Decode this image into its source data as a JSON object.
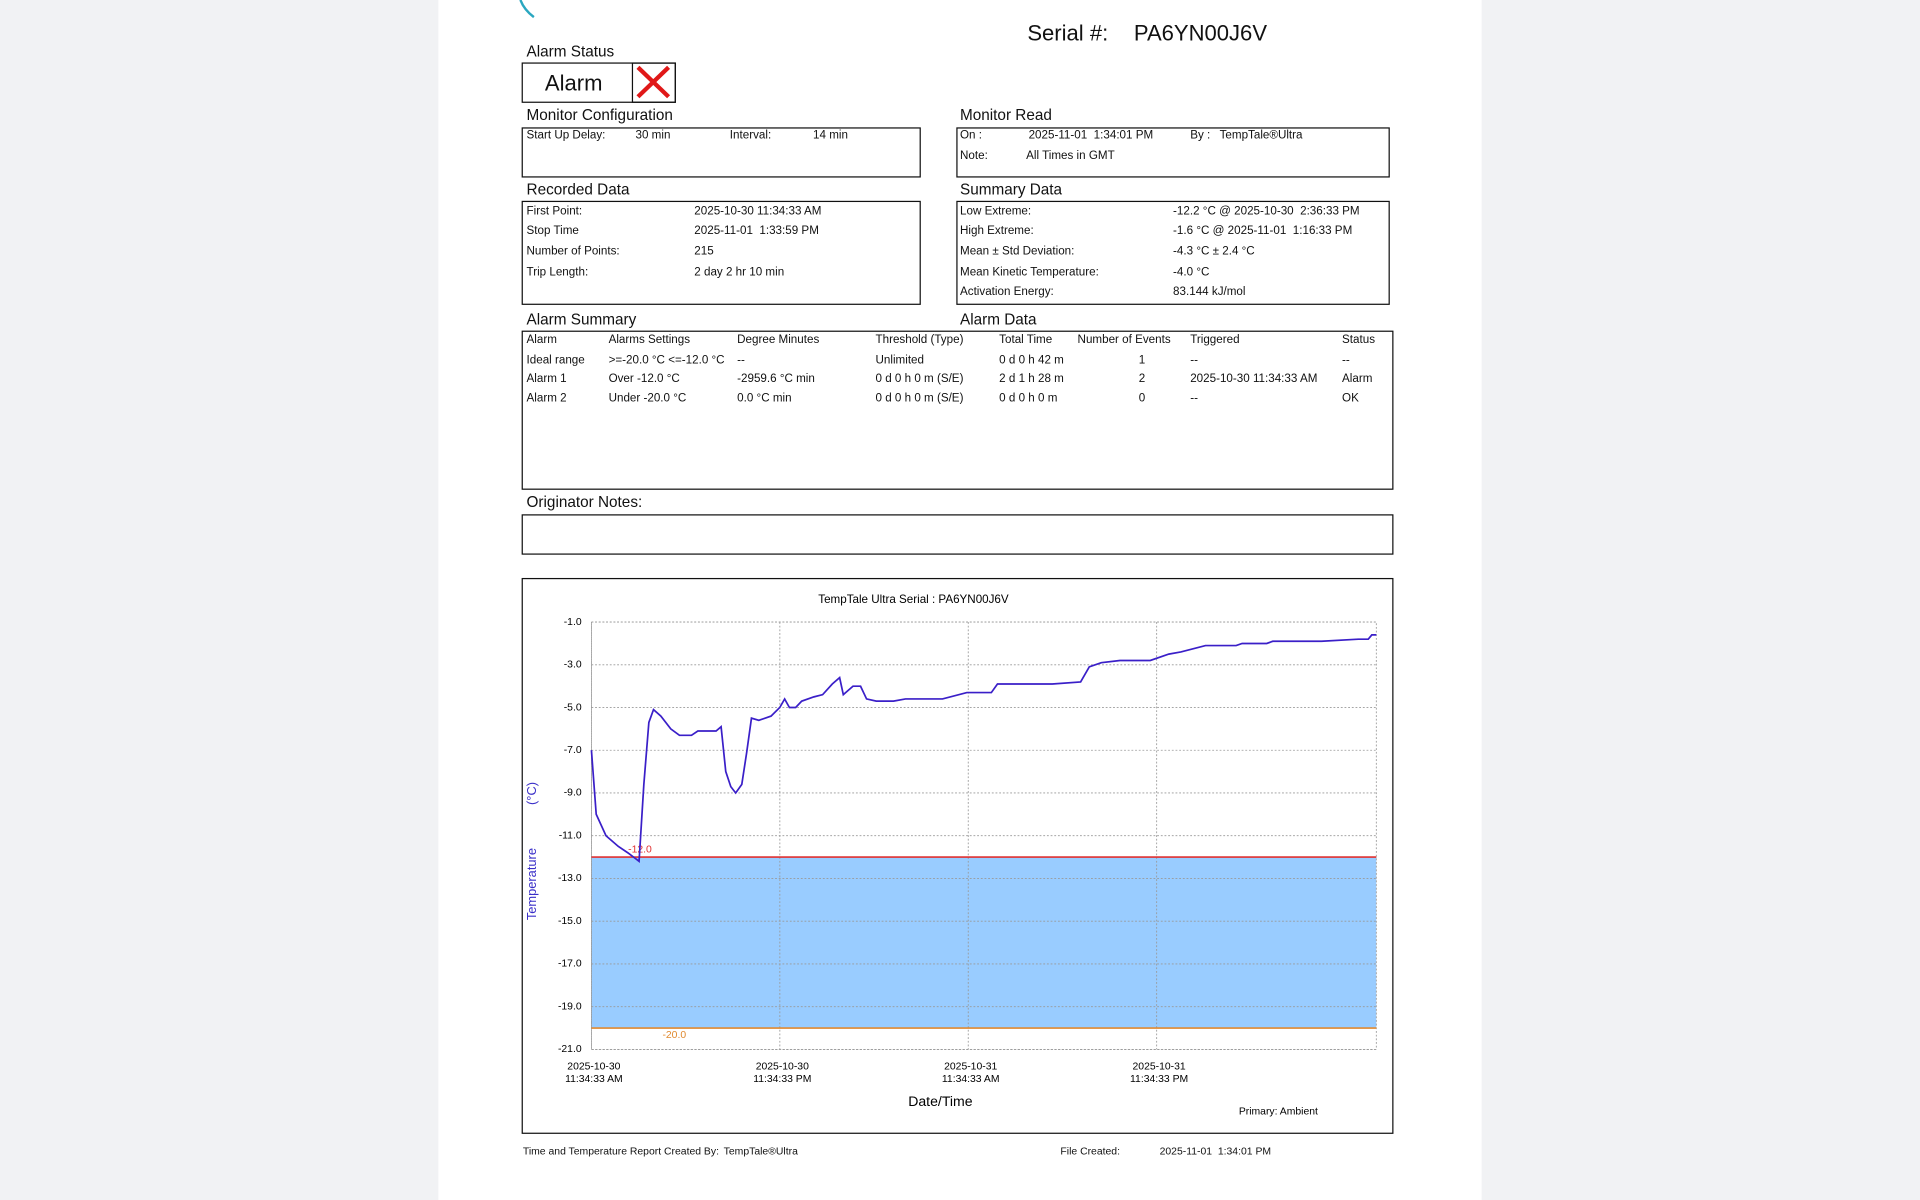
{
  "header": {
    "serial_label": "Serial #:",
    "serial": "PA6YN00J6V"
  },
  "alarm_status": {
    "title": "Alarm Status",
    "value": "Alarm"
  },
  "monitor_configuration": {
    "title": "Monitor Configuration",
    "start_up_delay_label": "Start Up Delay:",
    "start_up_delay": "30 min",
    "interval_label": "Interval:",
    "interval": "14 min"
  },
  "monitor_read": {
    "title": "Monitor Read",
    "on_label": "On :",
    "on": "2025-11-01  1:34:01 PM",
    "by_label": "By :",
    "by": "TempTale®Ultra",
    "note_label": "Note:",
    "note": "All Times in GMT"
  },
  "recorded_data": {
    "title": "Recorded Data",
    "rows": [
      [
        "First Point:",
        "2025-10-30 11:34:33 AM"
      ],
      [
        "Stop Time",
        "2025-11-01  1:33:59 PM"
      ],
      [
        "Number of Points:",
        "215"
      ],
      [
        "Trip Length:",
        "2 day 2 hr 10 min"
      ]
    ]
  },
  "summary_data": {
    "title": "Summary Data",
    "rows": [
      [
        "Low Extreme:",
        "-12.2 °C @ 2025-10-30  2:36:33 PM"
      ],
      [
        "High Extreme:",
        "-1.6 °C @ 2025-11-01  1:16:33 PM"
      ],
      [
        "Mean ± Std Deviation:",
        "-4.3 °C ± 2.4 °C"
      ],
      [
        "Mean Kinetic Temperature:",
        "-4.0 °C"
      ],
      [
        "Activation Energy:",
        "83.144 kJ/mol"
      ]
    ]
  },
  "alarm_summary": {
    "title": "Alarm Summary",
    "data_title": "Alarm Data",
    "columns": [
      "Alarm",
      "Alarms Settings",
      "Degree Minutes",
      "Threshold (Type)",
      "Total Time",
      "Number of Events",
      "Triggered",
      "Status"
    ],
    "rows": [
      [
        "Ideal range",
        ">=-20.0 °C <=-12.0 °C",
        "--",
        "Unlimited",
        "0 d 0 h 42 m",
        "1",
        "--",
        "--"
      ],
      [
        "Alarm 1",
        "Over -12.0 °C",
        "-2959.6 °C min",
        "0 d 0 h 0 m (S/E)",
        "2 d 1 h 28 m",
        "2",
        "2025-10-30 11:34:33 AM",
        "Alarm"
      ],
      [
        "Alarm 2",
        "Under -20.0 °C",
        "0.0 °C min",
        "0 d 0 h 0 m (S/E)",
        "0 d 0 h 0 m",
        "0",
        "--",
        "OK"
      ]
    ]
  },
  "originator_notes": {
    "title": "Originator Notes:"
  },
  "footer": {
    "created_by_label": "Time and Temperature Report Created By:",
    "created_by": "TempTale®Ultra",
    "file_created_label": "File Created:",
    "file_created": "2025-11-01  1:34:01 PM"
  },
  "chart_data": {
    "type": "line",
    "title": "TempTale Ultra  Serial : PA6YN00J6V",
    "xlabel": "Date/Time",
    "ylabel": "Temperature",
    "yunit": "(°C)",
    "annotation": "Primary: Ambient",
    "color": "#3a1fc8",
    "band_color": "#99ccff",
    "grid": true,
    "thresholds": [
      {
        "value": -12,
        "label": "-12.0",
        "color": "#e03030"
      },
      {
        "value": -20,
        "label": "-20.0",
        "color": "#e08a30"
      }
    ],
    "x": [
      "2025-10-30T11:34:33",
      "2025-10-30T11:53",
      "2025-10-30T12:30",
      "2025-10-30T13:17",
      "2025-10-30T13:54",
      "2025-10-30T14:36:33",
      "2025-10-30T14:55",
      "2025-10-30T15:14",
      "2025-10-30T15:32",
      "2025-10-30T16:00",
      "2025-10-30T16:38",
      "2025-10-30T17:11",
      "2025-10-30T17:57",
      "2025-10-30T18:21",
      "2025-10-30T19:31",
      "2025-10-30T19:50",
      "2025-10-30T20:08",
      "2025-10-30T20:27",
      "2025-10-30T20:46",
      "2025-10-30T21:09",
      "2025-10-30T21:28",
      "2025-10-30T21:46",
      "2025-10-30T22:14",
      "2025-10-30T23:01",
      "2025-10-30T23:34",
      "2025-10-30T23:53",
      "2025-10-31T00:11",
      "2025-10-31T00:35",
      "2025-10-31T00:58",
      "2025-10-31T01:45",
      "2025-10-31T02:18",
      "2025-10-31T02:55",
      "2025-10-31T03:23",
      "2025-10-31T03:37",
      "2025-10-31T03:56",
      "2025-10-31T04:14",
      "2025-10-31T04:43",
      "2025-10-31T05:06",
      "2025-10-31T05:43",
      "2025-10-31T06:49",
      "2025-10-31T07:35",
      "2025-10-31T09:56",
      "2025-10-31T11:29",
      "2025-10-31T13:03",
      "2025-10-31T13:26",
      "2025-10-31T16:56",
      "2025-10-31T18:44",
      "2025-10-31T19:17",
      "2025-10-31T20:03",
      "2025-10-31T21:14",
      "2025-10-31T23:10",
      "2025-11-01T00:21",
      "2025-11-01T01:07",
      "2025-11-01T02:41",
      "2025-11-01T04:38",
      "2025-11-01T05:01",
      "2025-11-01T06:35",
      "2025-11-01T06:58",
      "2025-11-01T10:05",
      "2025-11-01T12:25",
      "2025-11-01T13:03",
      "2025-11-01T13:16:33",
      "2025-11-01T13:33:59"
    ],
    "values": [
      -7.0,
      -10.0,
      -11.0,
      -11.5,
      -11.8,
      -12.2,
      -8.6,
      -5.7,
      -5.1,
      -5.4,
      -6.0,
      -6.3,
      -6.3,
      -6.1,
      -6.1,
      -5.9,
      -8.0,
      -8.7,
      -9.0,
      -8.6,
      -7.1,
      -5.5,
      -5.6,
      -5.4,
      -5.0,
      -4.6,
      -5.0,
      -5.0,
      -4.7,
      -4.5,
      -4.4,
      -3.9,
      -3.6,
      -4.4,
      -4.2,
      -4.0,
      -4.0,
      -4.6,
      -4.7,
      -4.7,
      -4.6,
      -4.6,
      -4.3,
      -4.3,
      -3.9,
      -3.9,
      -3.8,
      -3.1,
      -2.9,
      -2.8,
      -2.8,
      -2.5,
      -2.4,
      -2.1,
      -2.1,
      -2.0,
      -2.0,
      -1.9,
      -1.9,
      -1.8,
      -1.8,
      -1.6,
      -1.6
    ],
    "xlim": [
      "2025-10-30T11:34:33",
      "2025-11-01T13:33:59"
    ],
    "xticks": [
      {
        "value": "2025-10-30T11:34:33",
        "label": "2025-10-30 11:34:33 AM"
      },
      {
        "value": "2025-10-30T23:34:33",
        "label": "2025-10-30 11:34:33 PM"
      },
      {
        "value": "2025-10-31T11:34:33",
        "label": "2025-10-31 11:34:33 AM"
      },
      {
        "value": "2025-10-31T23:34:33",
        "label": "2025-10-31 11:34:33 PM"
      }
    ],
    "ylim": [
      -21,
      -1
    ],
    "yticks": [
      {
        "value": -1,
        "label": "-1.0"
      },
      {
        "value": -3,
        "label": "-3.0"
      },
      {
        "value": -5,
        "label": "-5.0"
      },
      {
        "value": -7,
        "label": "-7.0"
      },
      {
        "value": -9,
        "label": "-9.0"
      },
      {
        "value": -11,
        "label": "-11.0"
      },
      {
        "value": -13,
        "label": "-13.0"
      },
      {
        "value": -15,
        "label": "-15.0"
      },
      {
        "value": -17,
        "label": "-17.0"
      },
      {
        "value": -19,
        "label": "-19.0"
      },
      {
        "value": -21,
        "label": "-21.0"
      }
    ]
  }
}
